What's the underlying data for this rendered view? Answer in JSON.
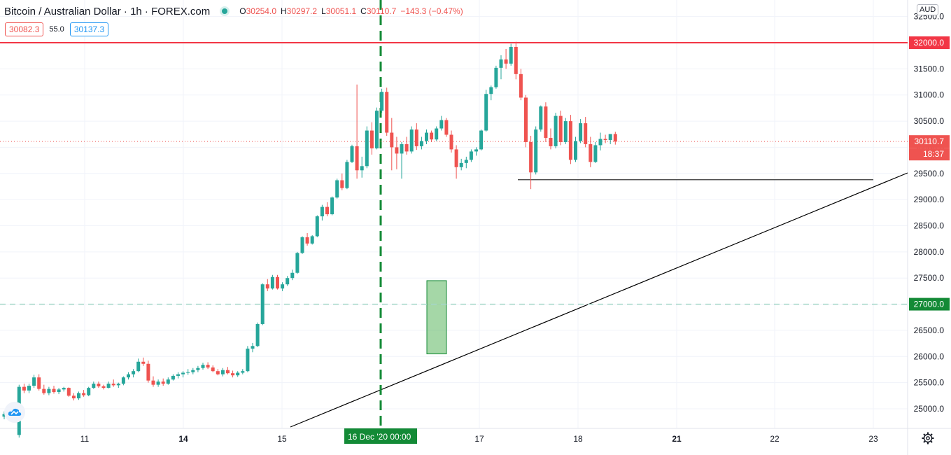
{
  "header": {
    "symbol_title": "Bitcoin / Australian Dollar · 1h · FOREX.com",
    "ohlc": {
      "open_label": "O",
      "open": "30254.0",
      "high_label": "H",
      "high": "30297.2",
      "low_label": "L",
      "low": "30051.1",
      "close_label": "C",
      "close": "30110.7",
      "change": "−143.3 (−0.47%)"
    },
    "sell_price": "30082.3",
    "spread": "55.0",
    "buy_price": "30137.3",
    "currency": "AUD"
  },
  "colors": {
    "up": "#26a69a",
    "down": "#ef5350",
    "resistance_line": "#f23645",
    "support_line": "#a5d6c9",
    "marker_line": "#138a36",
    "axis_text": "#131722",
    "grid": "#f0f3fa",
    "highlight_fill": "#4caf50"
  },
  "icons": {
    "settings": "gear-icon",
    "logo": "cloud-logo-icon"
  },
  "chart_data": {
    "type": "candlestick",
    "title": "Bitcoin / Australian Dollar · 1h · FOREX.com",
    "interval": "1h",
    "ylim": [
      24700,
      32450
    ],
    "x_tick_labels": [
      "11",
      "14",
      "15",
      "17",
      "18",
      "21",
      "22",
      "23"
    ],
    "y_tick_labels": [
      "25000.0",
      "25500.0",
      "26000.0",
      "26500.0",
      "27000.0",
      "27500.0",
      "28000.0",
      "28500.0",
      "29000.0",
      "29500.0",
      "30000.0",
      "30500.0",
      "31000.0",
      "31500.0",
      "32000.0",
      "32500.0"
    ],
    "y_ticks": [
      25000,
      25500,
      26000,
      26500,
      27000,
      27500,
      28000,
      28500,
      29000,
      29500,
      30000,
      30500,
      31000,
      31500,
      32000,
      32500
    ],
    "grid": true,
    "series": [
      {
        "candles": [
          [
            24850,
            24950,
            24800,
            24900
          ],
          [
            24900,
            24950,
            24820,
            24860
          ],
          [
            24860,
            24900,
            24780,
            24820
          ],
          [
            24500,
            25460,
            24450,
            25420
          ],
          [
            25420,
            25480,
            25300,
            25350
          ],
          [
            25350,
            25480,
            25300,
            25440
          ],
          [
            25440,
            25650,
            25400,
            25600
          ],
          [
            25600,
            25660,
            25350,
            25380
          ],
          [
            25380,
            25460,
            25270,
            25300
          ],
          [
            25300,
            25420,
            25260,
            25380
          ],
          [
            25380,
            25440,
            25290,
            25320
          ],
          [
            25320,
            25400,
            25280,
            25370
          ],
          [
            25370,
            25420,
            25330,
            25400
          ],
          [
            25400,
            25410,
            25230,
            25250
          ],
          [
            25250,
            25300,
            25160,
            25200
          ],
          [
            25200,
            25330,
            25170,
            25300
          ],
          [
            25300,
            25360,
            25230,
            25260
          ],
          [
            25260,
            25420,
            25240,
            25400
          ],
          [
            25400,
            25520,
            25380,
            25480
          ],
          [
            25480,
            25520,
            25400,
            25430
          ],
          [
            25430,
            25460,
            25370,
            25400
          ],
          [
            25400,
            25520,
            25390,
            25480
          ],
          [
            25480,
            25560,
            25420,
            25450
          ],
          [
            25450,
            25500,
            25400,
            25480
          ],
          [
            25480,
            25620,
            25450,
            25600
          ],
          [
            25600,
            25700,
            25560,
            25660
          ],
          [
            25660,
            25760,
            25600,
            25720
          ],
          [
            25720,
            25960,
            25700,
            25900
          ],
          [
            25900,
            25980,
            25820,
            25860
          ],
          [
            25860,
            25920,
            25500,
            25540
          ],
          [
            25540,
            25620,
            25420,
            25460
          ],
          [
            25460,
            25560,
            25420,
            25520
          ],
          [
            25520,
            25580,
            25440,
            25480
          ],
          [
            25480,
            25600,
            25460,
            25560
          ],
          [
            25560,
            25660,
            25540,
            25630
          ],
          [
            25630,
            25700,
            25580,
            25660
          ],
          [
            25660,
            25720,
            25600,
            25690
          ],
          [
            25690,
            25760,
            25650,
            25700
          ],
          [
            25700,
            25780,
            25660,
            25740
          ],
          [
            25740,
            25820,
            25700,
            25780
          ],
          [
            25780,
            25880,
            25750,
            25840
          ],
          [
            25840,
            25890,
            25760,
            25790
          ],
          [
            25790,
            25830,
            25700,
            25720
          ],
          [
            25720,
            25760,
            25640,
            25660
          ],
          [
            25660,
            25780,
            25620,
            25740
          ],
          [
            25740,
            25800,
            25660,
            25680
          ],
          [
            25680,
            25730,
            25600,
            25640
          ],
          [
            25640,
            25720,
            25610,
            25690
          ],
          [
            25690,
            25760,
            25660,
            25720
          ],
          [
            25720,
            26200,
            25700,
            26150
          ],
          [
            26150,
            26260,
            26080,
            26200
          ],
          [
            26200,
            26650,
            26180,
            26620
          ],
          [
            26620,
            27400,
            26600,
            27380
          ],
          [
            27380,
            27480,
            27250,
            27300
          ],
          [
            27300,
            27560,
            27280,
            27520
          ],
          [
            27520,
            27560,
            27280,
            27300
          ],
          [
            27300,
            27420,
            27250,
            27380
          ],
          [
            27380,
            27540,
            27350,
            27500
          ],
          [
            27500,
            27660,
            27460,
            27600
          ],
          [
            27600,
            28000,
            27580,
            27980
          ],
          [
            27980,
            28300,
            27960,
            28280
          ],
          [
            28280,
            28360,
            28120,
            28160
          ],
          [
            28160,
            28320,
            28140,
            28300
          ],
          [
            28300,
            28700,
            28280,
            28680
          ],
          [
            28680,
            28900,
            28600,
            28860
          ],
          [
            28860,
            28950,
            28680,
            28720
          ],
          [
            28720,
            29060,
            28700,
            29040
          ],
          [
            29040,
            29400,
            29020,
            29370
          ],
          [
            29370,
            29500,
            29180,
            29220
          ],
          [
            29220,
            29760,
            29200,
            29720
          ],
          [
            29720,
            30050,
            29700,
            30020
          ],
          [
            30020,
            31200,
            29400,
            29560
          ],
          [
            29560,
            29820,
            29420,
            29640
          ],
          [
            29640,
            30400,
            29600,
            30320
          ],
          [
            30320,
            30480,
            29860,
            29980
          ],
          [
            29980,
            30760,
            29960,
            30700
          ],
          [
            30700,
            31120,
            30660,
            31060
          ],
          [
            31060,
            31140,
            30220,
            30280
          ],
          [
            30280,
            30560,
            29560,
            30000
          ],
          [
            30000,
            30200,
            29580,
            29880
          ],
          [
            29880,
            30100,
            29400,
            30060
          ],
          [
            30060,
            30200,
            29860,
            29920
          ],
          [
            29920,
            30400,
            29880,
            30340
          ],
          [
            30340,
            30460,
            29950,
            30020
          ],
          [
            30020,
            30200,
            29960,
            30120
          ],
          [
            30120,
            30340,
            30060,
            30280
          ],
          [
            30280,
            30320,
            30100,
            30150
          ],
          [
            30150,
            30400,
            30120,
            30360
          ],
          [
            30360,
            30600,
            30320,
            30520
          ],
          [
            30520,
            30560,
            30200,
            30240
          ],
          [
            30240,
            30320,
            29900,
            29960
          ],
          [
            29960,
            30040,
            29400,
            29620
          ],
          [
            29620,
            29780,
            29560,
            29700
          ],
          [
            29700,
            29820,
            29600,
            29760
          ],
          [
            29760,
            29960,
            29720,
            29920
          ],
          [
            29920,
            30000,
            29840,
            29960
          ],
          [
            29960,
            30340,
            29940,
            30320
          ],
          [
            30320,
            31100,
            30300,
            31020
          ],
          [
            31020,
            31180,
            30900,
            31150
          ],
          [
            31150,
            31560,
            31120,
            31520
          ],
          [
            31520,
            31760,
            31300,
            31680
          ],
          [
            31680,
            31880,
            31500,
            31600
          ],
          [
            31600,
            31980,
            31560,
            31920
          ],
          [
            31920,
            32020,
            31300,
            31400
          ],
          [
            31400,
            31500,
            30900,
            30950
          ],
          [
            30950,
            31000,
            30000,
            30100
          ],
          [
            30100,
            30220,
            29200,
            29520
          ],
          [
            29520,
            30400,
            29480,
            30340
          ],
          [
            30340,
            30800,
            30300,
            30780
          ],
          [
            30780,
            30860,
            30100,
            30180
          ],
          [
            30180,
            30360,
            29960,
            30020
          ],
          [
            30020,
            30660,
            29980,
            30600
          ],
          [
            30600,
            30700,
            30040,
            30100
          ],
          [
            30100,
            30560,
            30060,
            30500
          ],
          [
            30500,
            30620,
            29680,
            29760
          ],
          [
            29760,
            30200,
            29720,
            30120
          ],
          [
            30120,
            30540,
            30080,
            30460
          ],
          [
            30460,
            30580,
            30000,
            30060
          ],
          [
            30060,
            30200,
            29620,
            29720
          ],
          [
            29720,
            30100,
            29700,
            30040
          ],
          [
            30040,
            30280,
            29940,
            30160
          ],
          [
            30160,
            30240,
            30080,
            30140
          ],
          [
            30140,
            30240,
            30060,
            30254
          ],
          [
            30254,
            30297.2,
            30051.1,
            30110.7
          ]
        ]
      }
    ],
    "levels": [
      {
        "name": "resistance",
        "value": 32000,
        "label": "32000.0"
      },
      {
        "name": "support",
        "value": 27000,
        "label": "27000.0"
      },
      {
        "name": "last-price",
        "value": 30110.7,
        "label": "30110.7",
        "countdown": "18:37"
      }
    ],
    "annotations": {
      "vertical_marker_label": "16 Dec '20",
      "vertical_marker_time": "00:00",
      "horizontal_support_value": 29380,
      "highlight_box_values": [
        26050,
        27450
      ]
    }
  }
}
